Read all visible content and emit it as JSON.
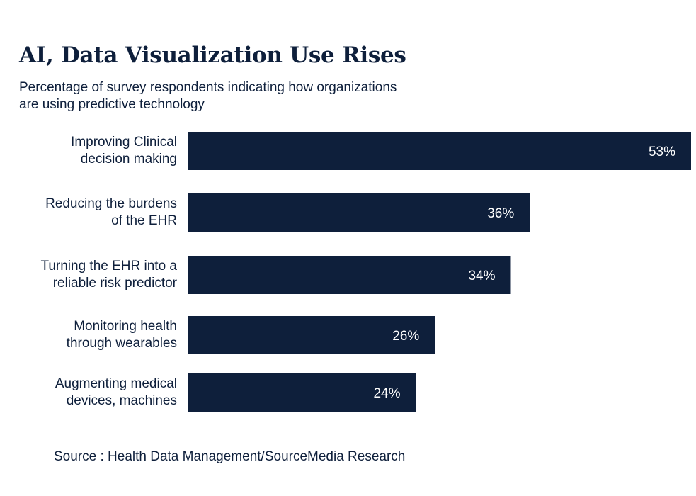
{
  "chart_data": {
    "type": "bar",
    "orientation": "horizontal",
    "title": "AI, Data Visualization Use Rises",
    "subtitle_lines": [
      "Percentage of survey respondents indicating how organizations",
      "are using predictive technology"
    ],
    "categories": [
      [
        "Improving Clinical",
        "decision making"
      ],
      [
        "Reducing the burdens",
        "of the EHR"
      ],
      [
        "Turning the EHR into a",
        "reliable risk predictor"
      ],
      [
        "Monitoring health",
        "through wearables"
      ],
      [
        "Augmenting medical",
        "devices, machines"
      ]
    ],
    "values": [
      53,
      36,
      34,
      26,
      24
    ],
    "value_labels": [
      "53%",
      "36%",
      "34%",
      "26%",
      "24%"
    ],
    "xlim": [
      0,
      53
    ],
    "grid": false,
    "legend": "none",
    "bar_color": "#0e1f3b",
    "label_color": "#ffffff",
    "text_color": "#0e1f3b"
  },
  "source": "Source : Health Data Management/SourceMedia Research"
}
